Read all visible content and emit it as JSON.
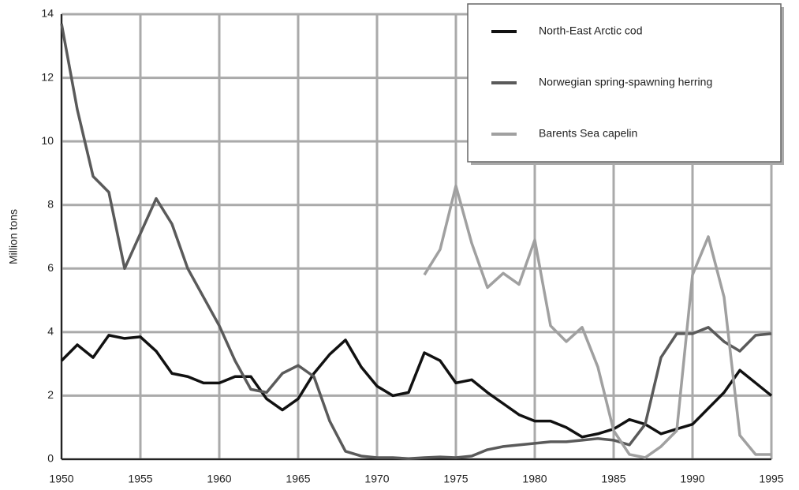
{
  "chart_data": {
    "type": "line",
    "y_label": "Million tons",
    "x": [
      1950,
      1951,
      1952,
      1953,
      1954,
      1955,
      1956,
      1957,
      1958,
      1959,
      1960,
      1961,
      1962,
      1963,
      1964,
      1965,
      1966,
      1967,
      1968,
      1969,
      1970,
      1971,
      1972,
      1973,
      1974,
      1975,
      1976,
      1977,
      1978,
      1979,
      1980,
      1981,
      1982,
      1983,
      1984,
      1985,
      1986,
      1987,
      1988,
      1989,
      1990,
      1991,
      1992,
      1993,
      1994,
      1995
    ],
    "series": [
      {
        "name": "North-East Arctic cod",
        "color": "#111111",
        "values": [
          3.1,
          3.6,
          3.2,
          3.9,
          3.8,
          3.85,
          3.4,
          2.7,
          2.6,
          2.4,
          2.4,
          2.6,
          2.6,
          1.9,
          1.55,
          1.9,
          2.7,
          3.3,
          3.75,
          2.9,
          2.3,
          2.0,
          2.1,
          3.35,
          3.1,
          2.4,
          2.5,
          2.1,
          1.75,
          1.4,
          1.2,
          1.2,
          1.0,
          0.7,
          0.8,
          0.95,
          1.25,
          1.1,
          0.8,
          0.95,
          1.1,
          1.6,
          2.1,
          2.8,
          2.4,
          2.0
        ]
      },
      {
        "name": "Norwegian spring-spawning herring",
        "color": "#5a5a5a",
        "values": [
          13.7,
          11.0,
          8.9,
          8.4,
          6.0,
          7.1,
          8.2,
          7.4,
          6.0,
          5.1,
          4.2,
          3.1,
          2.2,
          2.1,
          2.7,
          2.95,
          2.6,
          1.2,
          0.25,
          0.1,
          0.05,
          0.05,
          0.02,
          0.05,
          0.07,
          0.05,
          0.1,
          0.3,
          0.4,
          0.45,
          0.5,
          0.55,
          0.55,
          0.6,
          0.65,
          0.6,
          0.45,
          1.1,
          3.2,
          3.95,
          3.95,
          4.15,
          3.7,
          3.4,
          3.9,
          3.95
        ]
      },
      {
        "name": "Barents Sea capelin",
        "color": "#a0a0a0",
        "values": [
          null,
          null,
          null,
          null,
          null,
          null,
          null,
          null,
          null,
          null,
          null,
          null,
          null,
          null,
          null,
          null,
          null,
          null,
          null,
          null,
          null,
          null,
          null,
          5.8,
          6.6,
          8.6,
          6.8,
          5.4,
          5.85,
          5.5,
          6.9,
          4.2,
          3.7,
          4.15,
          2.9,
          0.9,
          0.15,
          0.05,
          0.4,
          0.9,
          5.8,
          7.0,
          5.1,
          0.75,
          0.15,
          0.15
        ]
      }
    ],
    "xlim": [
      1950,
      1995
    ],
    "xticks": [
      1950,
      1955,
      1960,
      1965,
      1970,
      1975,
      1980,
      1985,
      1990,
      1995
    ],
    "ylim": [
      0,
      14
    ],
    "yticks": [
      0,
      2,
      4,
      6,
      8,
      10,
      12,
      14
    ],
    "grid": true,
    "legend": "upper right"
  }
}
